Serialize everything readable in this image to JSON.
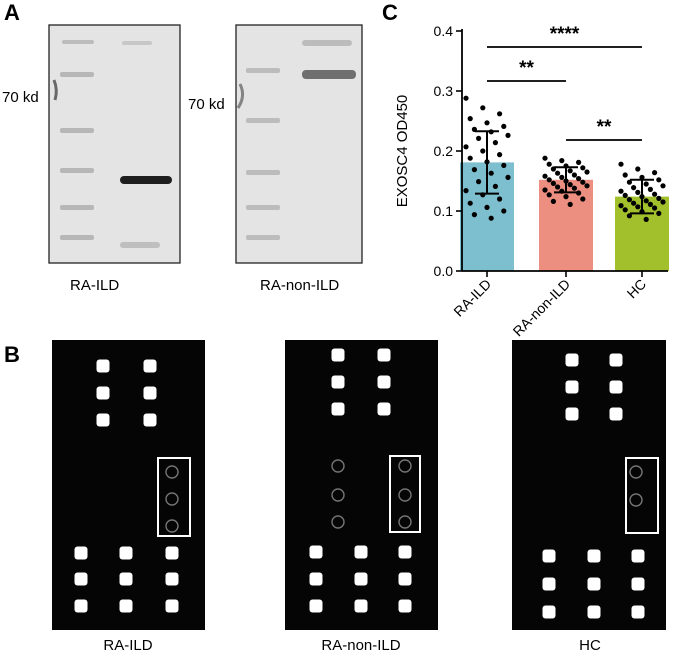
{
  "panels": {
    "a": {
      "letter": "A",
      "marker_left": "70 kd",
      "marker_right": "70 kd",
      "label_left": "RA-ILD",
      "label_right": "RA-non-ILD"
    },
    "b": {
      "letter": "B",
      "labels": [
        "RA-ILD",
        "RA-non-ILD",
        "HC"
      ]
    },
    "c": {
      "letter": "C",
      "significance": [
        "****",
        "**",
        "**"
      ]
    }
  },
  "colors": {
    "ra_ild": "#7dbfcf",
    "ra_non_ild": "#ec8f80",
    "hc": "#a2c02c",
    "blot_bg": "#e4e4e4",
    "blot_band": "#1e1e1e",
    "array_bg": "#050505",
    "array_spot": "#ffffff"
  },
  "chart_data": {
    "type": "bar",
    "categories": [
      "RA-ILD",
      "RA-non-ILD",
      "HC"
    ],
    "values": [
      0.181,
      0.152,
      0.124
    ],
    "sd": [
      0.052,
      0.021,
      0.028
    ],
    "ylabel": "EXOSC4 OD450",
    "ylim": [
      0.0,
      0.4
    ],
    "yticks": [
      0.0,
      0.1,
      0.2,
      0.3,
      0.4
    ],
    "grid": false,
    "points": [
      [
        0.288,
        0.272,
        0.262,
        0.254,
        0.247,
        0.241,
        0.236,
        0.232,
        0.226,
        0.221,
        0.214,
        0.207,
        0.2,
        0.194,
        0.188,
        0.182,
        0.176,
        0.169,
        0.163,
        0.156,
        0.149,
        0.141,
        0.134,
        0.127,
        0.12,
        0.113,
        0.106,
        0.1,
        0.094,
        0.088
      ],
      [
        0.188,
        0.184,
        0.181,
        0.178,
        0.175,
        0.172,
        0.17,
        0.167,
        0.165,
        0.163,
        0.16,
        0.158,
        0.156,
        0.154,
        0.152,
        0.15,
        0.148,
        0.146,
        0.144,
        0.142,
        0.14,
        0.138,
        0.135,
        0.133,
        0.13,
        0.127,
        0.124,
        0.12,
        0.116,
        0.111
      ],
      [
        0.178,
        0.17,
        0.164,
        0.16,
        0.156,
        0.152,
        0.148,
        0.145,
        0.142,
        0.139,
        0.136,
        0.133,
        0.131,
        0.128,
        0.126,
        0.124,
        0.121,
        0.119,
        0.117,
        0.115,
        0.113,
        0.111,
        0.109,
        0.107,
        0.105,
        0.102,
        0.099,
        0.096,
        0.092,
        0.086
      ]
    ]
  }
}
